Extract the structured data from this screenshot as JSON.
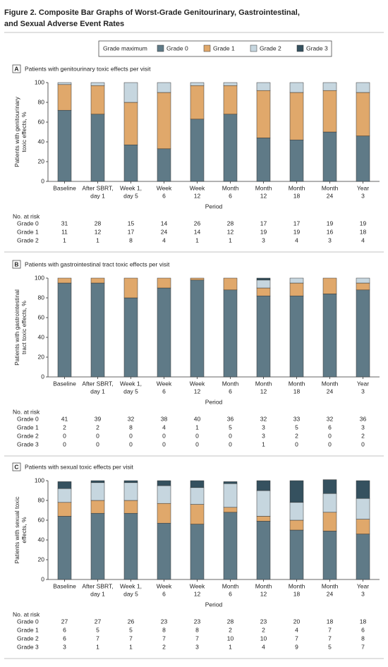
{
  "title": [
    "Figure 2. Composite Bar Graphs of Worst-Grade Genitourinary, Gastrointestinal,",
    "and Sexual Adverse Event Rates"
  ],
  "legend": {
    "title": "Grade maximum",
    "items": [
      {
        "name": "Grade 0",
        "color": "#5f7a87"
      },
      {
        "name": "Grade 1",
        "color": "#e0a86b"
      },
      {
        "name": "Grade 2",
        "color": "#c6d6df"
      },
      {
        "name": "Grade 3",
        "color": "#35515f"
      }
    ]
  },
  "chart_data": [
    {
      "type": "bar",
      "stacked": true,
      "panel": "A",
      "title": "Patients with genitourinary toxic effects per visit",
      "ylabel": [
        "Patients with genitourinary",
        "toxic effects, %"
      ],
      "xlabel": "Period",
      "categories": [
        [
          "Baseline"
        ],
        [
          "After SBRT,",
          "day 1"
        ],
        [
          "Week 1,",
          "day 5"
        ],
        [
          "Week",
          "6"
        ],
        [
          "Week",
          "12"
        ],
        [
          "Month",
          "6"
        ],
        [
          "Month",
          "12"
        ],
        [
          "Month",
          "18"
        ],
        [
          "Month",
          "24"
        ],
        [
          "Year",
          "3"
        ]
      ],
      "series": [
        {
          "name": "Grade 0",
          "color": "#5f7a87",
          "values": [
            72,
            68,
            37,
            33,
            63,
            68,
            44,
            42,
            50,
            46
          ]
        },
        {
          "name": "Grade 1",
          "color": "#e0a86b",
          "values": [
            26,
            29,
            43,
            57,
            34,
            29,
            48,
            48,
            42,
            44
          ]
        },
        {
          "name": "Grade 2",
          "color": "#c6d6df",
          "values": [
            2,
            3,
            20,
            10,
            3,
            3,
            8,
            10,
            8,
            10
          ]
        }
      ],
      "ylim": [
        0,
        100
      ],
      "yticks": [
        0,
        20,
        40,
        60,
        80,
        100
      ],
      "at_risk": {
        "label": "No. at risk",
        "rows": [
          [
            31,
            28,
            15,
            14,
            26,
            28,
            17,
            17,
            19,
            19
          ],
          [
            11,
            12,
            17,
            24,
            14,
            12,
            19,
            19,
            16,
            18
          ],
          [
            1,
            1,
            8,
            4,
            1,
            1,
            3,
            4,
            3,
            4
          ]
        ]
      }
    },
    {
      "type": "bar",
      "stacked": true,
      "panel": "B",
      "title": "Patients with gastrointestinal tract toxic effects per visit",
      "ylabel": [
        "Patients with gastrointestinal",
        "tract toxic effects, %"
      ],
      "xlabel": "Period",
      "categories": [
        [
          "Baseline"
        ],
        [
          "After SBRT,",
          "day 1"
        ],
        [
          "Week 1,",
          "day 5"
        ],
        [
          "Week",
          "6"
        ],
        [
          "Week",
          "12"
        ],
        [
          "Month",
          "6"
        ],
        [
          "Month",
          "12"
        ],
        [
          "Month",
          "18"
        ],
        [
          "Month",
          "24"
        ],
        [
          "Year",
          "3"
        ]
      ],
      "series": [
        {
          "name": "Grade 0",
          "color": "#5f7a87",
          "values": [
            95,
            95,
            80,
            90,
            98,
            88,
            82,
            82,
            84,
            88
          ]
        },
        {
          "name": "Grade 1",
          "color": "#e0a86b",
          "values": [
            5,
            5,
            20,
            10,
            2,
            12,
            8,
            13,
            16,
            7
          ]
        },
        {
          "name": "Grade 2",
          "color": "#c6d6df",
          "values": [
            0,
            0,
            0,
            0,
            0,
            0,
            8,
            5,
            0,
            5
          ]
        },
        {
          "name": "Grade 3",
          "color": "#35515f",
          "values": [
            0,
            0,
            0,
            0,
            0,
            0,
            2,
            0,
            0,
            0
          ]
        }
      ],
      "ylim": [
        0,
        100
      ],
      "yticks": [
        0,
        20,
        40,
        60,
        80,
        100
      ],
      "at_risk": {
        "label": "No. at risk",
        "rows": [
          [
            41,
            39,
            32,
            38,
            40,
            36,
            32,
            33,
            32,
            36
          ],
          [
            2,
            2,
            8,
            4,
            1,
            5,
            3,
            5,
            6,
            3
          ],
          [
            0,
            0,
            0,
            0,
            0,
            0,
            3,
            2,
            0,
            2
          ],
          [
            0,
            0,
            0,
            0,
            0,
            0,
            1,
            0,
            0,
            0
          ]
        ]
      }
    },
    {
      "type": "bar",
      "stacked": true,
      "panel": "C",
      "title": "Patients with sexual toxic effects per visit",
      "ylabel": [
        "Patients with sexual toxic",
        "effects, %"
      ],
      "xlabel": "Period",
      "categories": [
        [
          "Baseline"
        ],
        [
          "After SBRT,",
          "day 1"
        ],
        [
          "Week 1,",
          "day 5"
        ],
        [
          "Week",
          "6"
        ],
        [
          "Week",
          "12"
        ],
        [
          "Month",
          "6"
        ],
        [
          "Month",
          "12"
        ],
        [
          "Month",
          "18"
        ],
        [
          "Month",
          "24"
        ],
        [
          "Year",
          "3"
        ]
      ],
      "series": [
        {
          "name": "Grade 0",
          "color": "#5f7a87",
          "values": [
            64,
            67,
            67,
            57,
            56,
            68,
            59,
            50,
            49,
            46
          ]
        },
        {
          "name": "Grade 1",
          "color": "#e0a86b",
          "values": [
            14,
            13,
            13,
            20,
            20,
            5,
            5,
            10,
            19,
            15
          ]
        },
        {
          "name": "Grade 2",
          "color": "#c6d6df",
          "values": [
            14,
            18,
            18,
            18,
            17,
            24,
            26,
            18,
            19,
            21
          ]
        },
        {
          "name": "Grade 3",
          "color": "#35515f",
          "values": [
            7,
            2,
            2,
            5,
            7,
            2,
            10,
            22,
            14,
            18
          ]
        }
      ],
      "ylim": [
        0,
        100
      ],
      "yticks": [
        0,
        20,
        40,
        60,
        80,
        100
      ],
      "at_risk": {
        "label": "No. at risk",
        "rows": [
          [
            27,
            27,
            26,
            23,
            23,
            28,
            23,
            20,
            18,
            18
          ],
          [
            6,
            5,
            5,
            8,
            8,
            2,
            2,
            4,
            7,
            6
          ],
          [
            6,
            7,
            7,
            7,
            7,
            10,
            10,
            7,
            7,
            8
          ],
          [
            3,
            1,
            1,
            2,
            3,
            1,
            4,
            9,
            5,
            7
          ]
        ]
      }
    }
  ]
}
